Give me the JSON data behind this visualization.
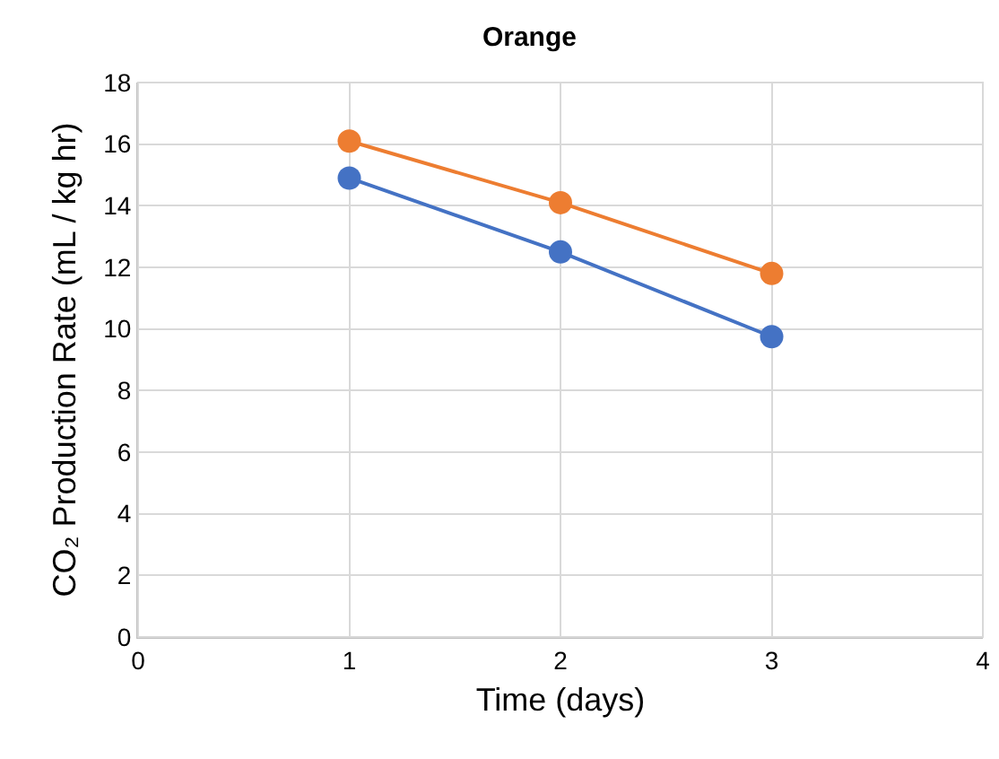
{
  "chart_data": {
    "type": "line",
    "title": "Orange",
    "xlabel": "Time (days)",
    "ylabel": "CO₂ Production Rate (mL / kg hr)",
    "x": [
      1,
      2,
      3
    ],
    "series": [
      {
        "color": "#4472c4",
        "values": [
          14.9,
          12.5,
          9.75
        ]
      },
      {
        "color": "#ed7d31",
        "values": [
          16.1,
          14.1,
          11.8
        ]
      }
    ],
    "xlim": [
      0,
      4
    ],
    "xticks": [
      0,
      1,
      2,
      3,
      4
    ],
    "ylim": [
      0,
      18
    ],
    "yticks": [
      0,
      2,
      4,
      6,
      8,
      10,
      12,
      14,
      16,
      18
    ],
    "grid": true,
    "marker": "circle",
    "line_style": "solid"
  }
}
